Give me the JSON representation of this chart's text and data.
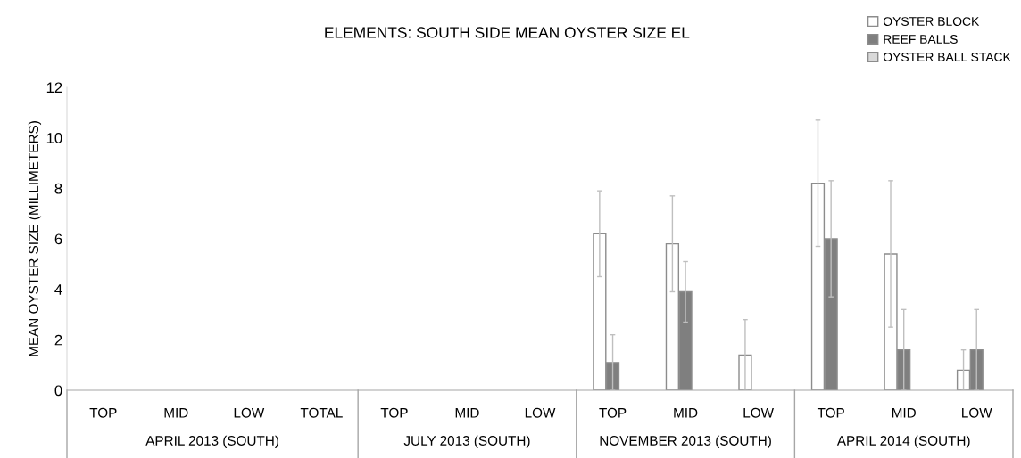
{
  "chart_data": {
    "type": "bar",
    "title": "ELEMENTS: SOUTH SIDE MEAN OYSTER SIZE EL",
    "ylabel": "MEAN OYSTER SIZE (MILLIMETERS)",
    "categories": [
      "TOP",
      "MID",
      "LOW",
      "TOTAL",
      "TOP",
      "MID",
      "LOW",
      "TOP",
      "MID",
      "LOW",
      "TOP",
      "MID",
      "LOW"
    ],
    "series": [
      {
        "name": "OYSTER BLOCK",
        "color": "#ffffff",
        "values": [
          null,
          null,
          null,
          null,
          null,
          null,
          null,
          6.2,
          5.8,
          1.4,
          8.2,
          5.4,
          0.8
        ],
        "errors": [
          null,
          null,
          null,
          null,
          null,
          null,
          null,
          1.7,
          1.9,
          1.4,
          2.5,
          2.9,
          0.8
        ]
      },
      {
        "name": "REEF BALLS",
        "color": "#7f7f7f",
        "values": [
          null,
          null,
          null,
          null,
          null,
          null,
          null,
          1.1,
          3.9,
          null,
          6.0,
          1.6,
          1.6
        ],
        "errors": [
          null,
          null,
          null,
          null,
          null,
          null,
          null,
          1.1,
          1.2,
          null,
          2.3,
          1.6,
          1.6
        ]
      },
      {
        "name": "OYSTER BALL STACK",
        "color": "#d9d9d9",
        "values": [
          null,
          null,
          null,
          null,
          null,
          null,
          null,
          null,
          null,
          null,
          null,
          null,
          null
        ]
      }
    ],
    "annotations": [
      "APRIL 2013 (SOUTH)",
      "JULY 2013 (SOUTH)",
      "NOVEMBER 2013 (SOUTH)",
      "APRIL 2014 (SOUTH)"
    ],
    "ylim": [
      0,
      12
    ],
    "yticks": [
      0,
      2,
      4,
      6,
      8,
      10,
      12
    ],
    "grid": false,
    "legend": "top right"
  }
}
